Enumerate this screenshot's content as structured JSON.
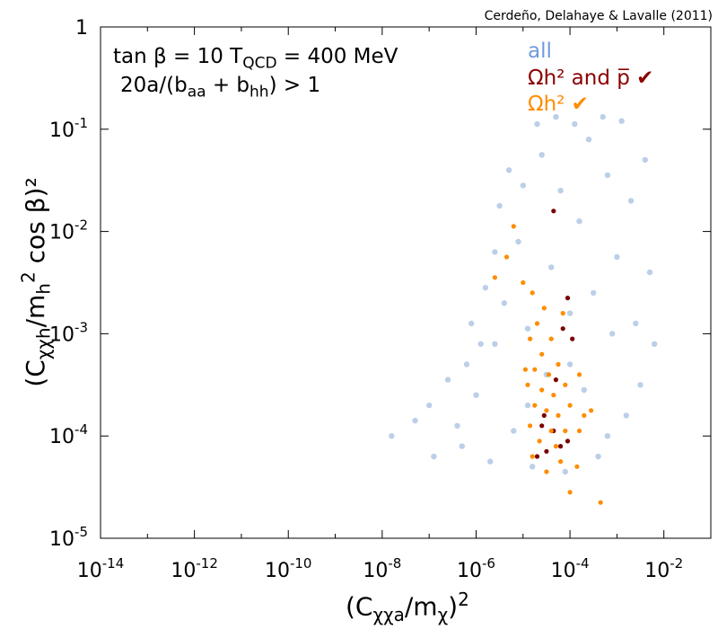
{
  "chart_data": {
    "type": "scatter",
    "title": "",
    "credit": "Cerdeño, Delahaye & Lavalle (2011)",
    "conditions": {
      "line1_prefix": "tan β = 10  T",
      "line1_sub": "QCD",
      "line1_suffix": " = 400 MeV",
      "line2_prefix": "20a/(b",
      "line2_sub1": "aa",
      "line2_mid": " + b",
      "line2_sub2": "hh",
      "line2_suffix": ") > 1"
    },
    "xlabel": {
      "prefix": "(C",
      "sub": "χχa",
      "mid": "/m",
      "sub2": "χ",
      "suffix": ")",
      "sup": "2"
    },
    "ylabel": {
      "prefix": "(C",
      "sub": "χχh",
      "mid": "/m",
      "sub2": "h",
      "sup": "2",
      "suffix": " cos β)²"
    },
    "x_scale": "log",
    "y_scale": "log",
    "xlim": [
      1e-14,
      0.1
    ],
    "ylim": [
      1e-05,
      1
    ],
    "x_ticks": [
      {
        "base": "10",
        "exp": "-14",
        "value": -14
      },
      {
        "base": "10",
        "exp": "-12",
        "value": -12
      },
      {
        "base": "10",
        "exp": "-10",
        "value": -10
      },
      {
        "base": "10",
        "exp": "-8",
        "value": -8
      },
      {
        "base": "10",
        "exp": "-6",
        "value": -6
      },
      {
        "base": "10",
        "exp": "-4",
        "value": -4
      },
      {
        "base": "10",
        "exp": "-2",
        "value": -2
      }
    ],
    "y_ticks": [
      {
        "base": "1",
        "exp": "",
        "value": 0
      },
      {
        "base": "10",
        "exp": "-1",
        "value": -1
      },
      {
        "base": "10",
        "exp": "-2",
        "value": -2
      },
      {
        "base": "10",
        "exp": "-3",
        "value": -3
      },
      {
        "base": "10",
        "exp": "-4",
        "value": -4
      },
      {
        "base": "10",
        "exp": "-5",
        "value": -5
      }
    ],
    "legend_position": "top-right",
    "legend": [
      {
        "label": "all",
        "color": "#6f9ade"
      },
      {
        "label": "Ωh² and p̅ ✔",
        "color": "#8b0000"
      },
      {
        "label": "Ωh² ✔",
        "color": "#ff8c00"
      }
    ],
    "series": [
      {
        "name": "all",
        "color": "#bccfe8",
        "points": [
          [
            -7.8,
            -4.0
          ],
          [
            -7.3,
            -3.85
          ],
          [
            -7.0,
            -3.7
          ],
          [
            -6.9,
            -4.2
          ],
          [
            -6.6,
            -3.45
          ],
          [
            -6.4,
            -3.9
          ],
          [
            -6.3,
            -4.1
          ],
          [
            -6.2,
            -3.3
          ],
          [
            -6.1,
            -2.9
          ],
          [
            -6.0,
            -3.6
          ],
          [
            -5.9,
            -3.1
          ],
          [
            -5.8,
            -2.55
          ],
          [
            -5.7,
            -4.25
          ],
          [
            -5.6,
            -2.2
          ],
          [
            -5.5,
            -1.75
          ],
          [
            -5.4,
            -2.7
          ],
          [
            -5.3,
            -1.4
          ],
          [
            -5.2,
            -3.95
          ],
          [
            -5.1,
            -2.1
          ],
          [
            -5.0,
            -1.55
          ],
          [
            -4.9,
            -2.95
          ],
          [
            -4.8,
            -4.3
          ],
          [
            -4.7,
            -0.95
          ],
          [
            -4.6,
            -1.25
          ],
          [
            -4.5,
            -3.4
          ],
          [
            -4.4,
            -2.35
          ],
          [
            -4.3,
            -0.88
          ],
          [
            -4.2,
            -1.6
          ],
          [
            -4.1,
            -4.35
          ],
          [
            -4.0,
            -2.8
          ],
          [
            -3.9,
            -0.95
          ],
          [
            -3.8,
            -1.9
          ],
          [
            -3.7,
            -3.55
          ],
          [
            -3.6,
            -1.1
          ],
          [
            -3.5,
            -2.6
          ],
          [
            -3.4,
            -4.2
          ],
          [
            -3.3,
            -0.88
          ],
          [
            -3.2,
            -1.45
          ],
          [
            -3.1,
            -3.0
          ],
          [
            -3.0,
            -2.25
          ],
          [
            -2.9,
            -0.92
          ],
          [
            -2.8,
            -3.8
          ],
          [
            -2.7,
            -1.7
          ],
          [
            -2.6,
            -2.9
          ],
          [
            -2.5,
            -3.5
          ],
          [
            -2.4,
            -1.3
          ],
          [
            -2.3,
            -2.4
          ],
          [
            -2.2,
            -3.1
          ],
          [
            -4.9,
            -3.7
          ],
          [
            -3.2,
            -4.0
          ],
          [
            -5.6,
            -3.1
          ],
          [
            -4.0,
            -3.3
          ]
        ]
      },
      {
        "name": "Ωh² and p̅ ✔",
        "color": "#7a0000",
        "points": [
          [
            -4.35,
            -1.8
          ],
          [
            -4.05,
            -2.65
          ],
          [
            -4.15,
            -2.95
          ],
          [
            -3.95,
            -3.05
          ],
          [
            -4.3,
            -3.45
          ],
          [
            -4.55,
            -3.8
          ],
          [
            -4.6,
            -3.9
          ],
          [
            -4.35,
            -3.95
          ],
          [
            -4.2,
            -4.1
          ],
          [
            -4.5,
            -4.15
          ],
          [
            -4.7,
            -4.2
          ],
          [
            -4.05,
            -4.05
          ]
        ]
      },
      {
        "name": "Ωh² ✔",
        "color": "#ff8c00",
        "points": [
          [
            -5.6,
            -2.45
          ],
          [
            -5.35,
            -2.25
          ],
          [
            -5.2,
            -1.95
          ],
          [
            -5.0,
            -2.5
          ],
          [
            -4.8,
            -2.6
          ],
          [
            -4.55,
            -2.75
          ],
          [
            -4.7,
            -2.9
          ],
          [
            -4.85,
            -3.05
          ],
          [
            -4.4,
            -3.05
          ],
          [
            -4.6,
            -3.2
          ],
          [
            -4.75,
            -3.35
          ],
          [
            -4.45,
            -3.4
          ],
          [
            -4.25,
            -3.3
          ],
          [
            -4.9,
            -3.5
          ],
          [
            -4.6,
            -3.55
          ],
          [
            -4.35,
            -3.6
          ],
          [
            -4.1,
            -3.5
          ],
          [
            -3.8,
            -3.4
          ],
          [
            -4.75,
            -3.7
          ],
          [
            -4.5,
            -3.75
          ],
          [
            -4.25,
            -3.8
          ],
          [
            -4.0,
            -3.7
          ],
          [
            -3.7,
            -3.8
          ],
          [
            -4.85,
            -3.9
          ],
          [
            -4.4,
            -3.95
          ],
          [
            -4.1,
            -3.95
          ],
          [
            -3.8,
            -3.95
          ],
          [
            -4.65,
            -4.05
          ],
          [
            -4.3,
            -4.1
          ],
          [
            -3.55,
            -3.75
          ],
          [
            -4.8,
            -4.2
          ],
          [
            -4.2,
            -4.25
          ],
          [
            -3.85,
            -4.3
          ],
          [
            -4.5,
            -4.35
          ],
          [
            -3.35,
            -4.65
          ],
          [
            -4.0,
            -4.55
          ],
          [
            -4.95,
            -3.35
          ],
          [
            -4.15,
            -2.8
          ]
        ]
      }
    ]
  }
}
